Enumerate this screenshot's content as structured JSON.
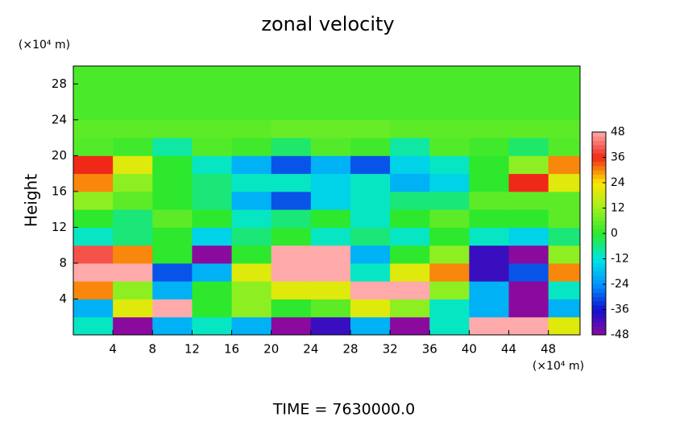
{
  "chart_data": {
    "type": "heatmap",
    "title": "zonal velocity",
    "ylabel": "Height",
    "x_unit_label": "(×10⁴ m)",
    "y_unit_label": "(×10⁴ m)",
    "footer": "TIME = 7630000.0",
    "x": [
      2,
      6,
      10,
      14,
      18,
      22,
      26,
      30,
      34,
      38,
      42,
      46,
      50
    ],
    "y": [
      1,
      3,
      5,
      7,
      9,
      11,
      13,
      15,
      17,
      19,
      21,
      23,
      25,
      27,
      29
    ],
    "z": [
      [
        -10,
        -48,
        -20,
        -10,
        -20,
        -48,
        -40,
        -20,
        -48,
        -10,
        48,
        48,
        20
      ],
      [
        -20,
        20,
        48,
        0,
        10,
        0,
        5,
        20,
        10,
        -10,
        -20,
        -48,
        -20
      ],
      [
        30,
        10,
        -20,
        0,
        10,
        20,
        20,
        48,
        48,
        10,
        -20,
        -48,
        -10
      ],
      [
        48,
        48,
        -30,
        -20,
        20,
        48,
        48,
        -10,
        20,
        30,
        -40,
        -30,
        30
      ],
      [
        40,
        30,
        0,
        -48,
        0,
        48,
        48,
        -20,
        0,
        10,
        -40,
        -48,
        10
      ],
      [
        -10,
        -5,
        0,
        -15,
        -5,
        0,
        -10,
        -5,
        -10,
        0,
        -10,
        -15,
        -5
      ],
      [
        0,
        -5,
        5,
        0,
        -10,
        -5,
        0,
        -10,
        0,
        5,
        0,
        0,
        5
      ],
      [
        10,
        5,
        0,
        -5,
        -20,
        -30,
        -15,
        -10,
        -5,
        -5,
        5,
        5,
        5
      ],
      [
        30,
        10,
        0,
        -5,
        -10,
        -10,
        -15,
        -10,
        -20,
        -15,
        0,
        36,
        20
      ],
      [
        36,
        20,
        0,
        -10,
        -20,
        -30,
        -20,
        -30,
        -15,
        -10,
        0,
        10,
        30
      ],
      [
        4,
        2,
        -8,
        4,
        2,
        -4,
        4,
        2,
        -8,
        4,
        2,
        -4,
        4
      ],
      [
        5,
        5,
        5,
        5,
        5,
        6,
        6,
        6,
        5,
        5,
        5,
        5,
        5
      ],
      [
        3,
        3,
        3,
        3,
        3,
        3,
        3,
        3,
        3,
        3,
        3,
        3,
        3
      ],
      [
        3,
        3,
        3,
        3,
        3,
        3,
        3,
        3,
        3,
        3,
        3,
        3,
        3
      ],
      [
        3,
        3,
        3,
        3,
        3,
        3,
        3,
        3,
        3,
        3,
        3,
        3,
        3
      ]
    ],
    "xlim": [
      0,
      51.2
    ],
    "ylim": [
      0,
      30
    ],
    "xticks": [
      4,
      8,
      12,
      16,
      20,
      24,
      28,
      32,
      36,
      40,
      44,
      48
    ],
    "yticks": [
      4,
      8,
      12,
      16,
      20,
      24,
      28
    ],
    "zlim": [
      -48,
      48
    ],
    "zticks": [
      -48,
      -36,
      -24,
      -12,
      0,
      12,
      24,
      36,
      48
    ],
    "colors": [
      "#8a0a9e",
      "#1010d0",
      "#0096ff",
      "#00e6e0",
      "#2de82d",
      "#a0f020",
      "#ffe600",
      "#f02818",
      "#ffaaaa"
    ]
  }
}
